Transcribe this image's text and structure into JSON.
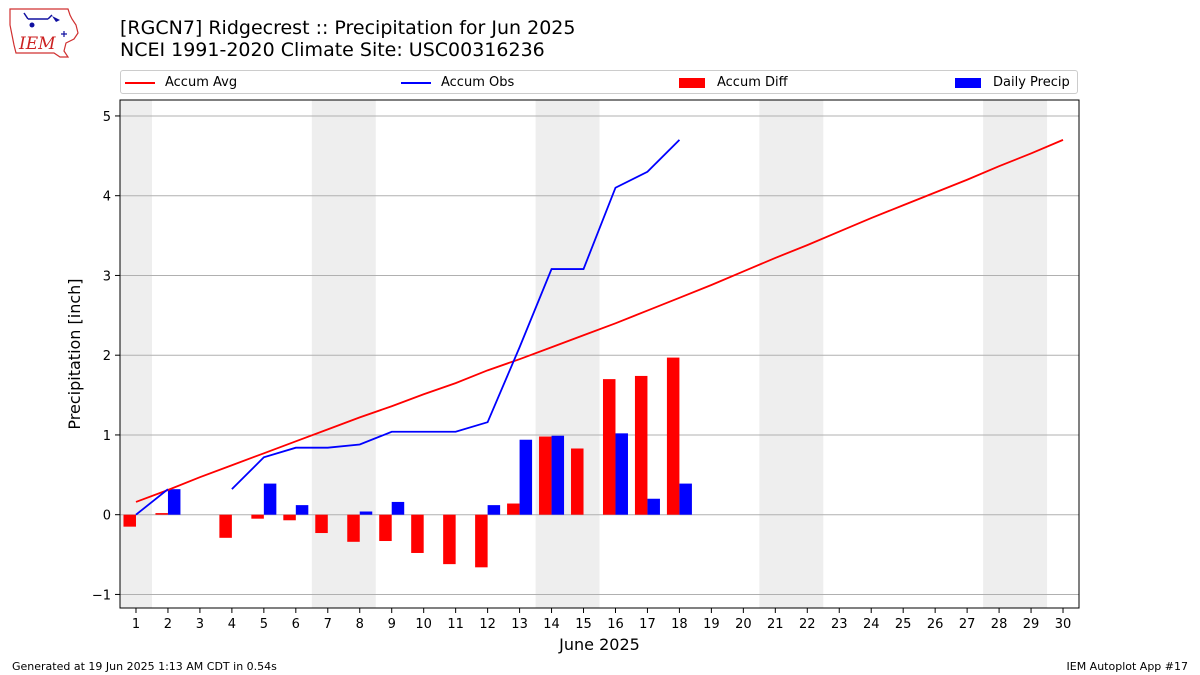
{
  "header": {
    "title_line1": "[RGCN7] Ridgecrest :: Precipitation for Jun 2025",
    "title_line2": "NCEI 1991-2020 Climate Site: USC00316236",
    "logo_text": "IEM"
  },
  "legend": {
    "accum_avg": "Accum Avg",
    "accum_obs": "Accum Obs",
    "accum_diff": "Accum Diff",
    "daily_precip": "Daily Precip"
  },
  "footer": {
    "generated": "Generated at 19 Jun 2025 1:13 AM CDT in 0.54s",
    "app": "IEM Autoplot App #17"
  },
  "colors": {
    "avg_line": "#ff0000",
    "obs_line": "#0000ff",
    "diff_bar": "#ff0000",
    "daily_bar": "#0000ff",
    "weekend_band": "#eeeeee",
    "grid": "#b0b0b0"
  },
  "chart_data": {
    "type": "bar",
    "xlabel": "June 2025",
    "ylabel": "Precipitation [inch]",
    "xlim": [
      0.5,
      30.5
    ],
    "ylim": [
      -1.17,
      5.2
    ],
    "yticks": [
      -1,
      0,
      1,
      2,
      3,
      4,
      5
    ],
    "grid": true,
    "legend_position": "top",
    "weekend_bands": [
      [
        0.5,
        1.5
      ],
      [
        6.5,
        8.5
      ],
      [
        13.5,
        15.5
      ],
      [
        20.5,
        22.5
      ],
      [
        27.5,
        29.5
      ]
    ],
    "categories": [
      "1",
      "2",
      "3",
      "4",
      "5",
      "6",
      "7",
      "8",
      "9",
      "10",
      "11",
      "12",
      "13",
      "14",
      "15",
      "16",
      "17",
      "18",
      "19",
      "20",
      "21",
      "22",
      "23",
      "24",
      "25",
      "26",
      "27",
      "28",
      "29",
      "30"
    ],
    "series": [
      {
        "name": "Accum Avg",
        "type": "line",
        "x": [
          1,
          2,
          3,
          4,
          5,
          6,
          7,
          8,
          9,
          10,
          11,
          12,
          13,
          14,
          15,
          16,
          17,
          18,
          19,
          20,
          21,
          22,
          23,
          24,
          25,
          26,
          27,
          28,
          29,
          30
        ],
        "values": [
          0.16,
          0.31,
          0.47,
          0.62,
          0.77,
          0.92,
          1.07,
          1.22,
          1.36,
          1.51,
          1.65,
          1.81,
          1.95,
          2.1,
          2.25,
          2.4,
          2.56,
          2.72,
          2.88,
          3.05,
          3.22,
          3.38,
          3.55,
          3.72,
          3.88,
          4.04,
          4.2,
          4.37,
          4.53,
          4.7
        ]
      },
      {
        "name": "Accum Obs",
        "type": "line",
        "segments": [
          {
            "x": [
              1,
              2
            ],
            "values": [
              0.0,
              0.32
            ]
          },
          {
            "x": [
              4,
              5,
              6,
              7,
              8,
              9,
              10,
              11,
              12,
              13,
              14,
              15,
              16,
              17,
              18
            ],
            "values": [
              0.32,
              0.72,
              0.84,
              0.84,
              0.88,
              1.04,
              1.04,
              1.04,
              1.16,
              2.1,
              3.08,
              3.08,
              4.1,
              4.3,
              4.7
            ]
          }
        ]
      },
      {
        "name": "Accum Diff",
        "type": "bar",
        "x": [
          1,
          2,
          3,
          4,
          5,
          6,
          7,
          8,
          9,
          10,
          11,
          12,
          13,
          14,
          15,
          16,
          17,
          18
        ],
        "values": [
          -0.15,
          0.02,
          0.0,
          -0.29,
          -0.05,
          -0.07,
          -0.23,
          -0.34,
          -0.33,
          -0.48,
          -0.62,
          -0.66,
          0.14,
          0.98,
          0.83,
          1.7,
          1.74,
          1.97
        ]
      },
      {
        "name": "Daily Precip",
        "type": "bar",
        "x": [
          2,
          5,
          6,
          8,
          9,
          12,
          13,
          14,
          16,
          17,
          18
        ],
        "values": [
          0.32,
          0.39,
          0.12,
          0.04,
          0.16,
          0.12,
          0.94,
          0.99,
          1.02,
          0.2,
          0.39
        ]
      }
    ]
  }
}
